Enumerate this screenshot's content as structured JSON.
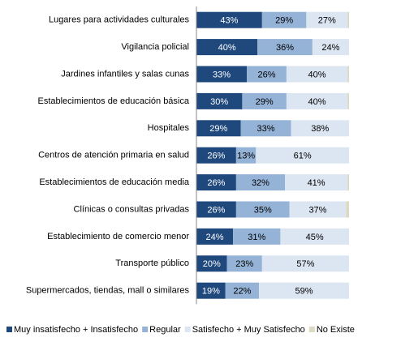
{
  "chart_data": {
    "type": "stacked-bar-horizontal",
    "categories": [
      "Lugares para actividades culturales",
      "Vigilancia policial",
      "Jardines infantiles y salas cunas",
      "Establecimientos de educación básica",
      "Hospitales",
      "Centros de atención primaria en salud",
      "Establecimientos de educación media",
      "Clínicas o consultas privadas",
      "Establecimiento de comercio menor",
      "Transporte público",
      "Supermercados, tiendas, mall o similares"
    ],
    "series": [
      {
        "name": "Muy insatisfecho + Insatisfecho",
        "color": "#1f497d",
        "values": [
          43,
          40,
          33,
          30,
          29,
          26,
          26,
          26,
          24,
          20,
          19
        ],
        "value_labels": [
          "43%",
          "40%",
          "33%",
          "30%",
          "29%",
          "26%",
          "26%",
          "26%",
          "24%",
          "20%",
          "19%"
        ]
      },
      {
        "name": "Regular",
        "color": "#95b3d7",
        "values": [
          29,
          36,
          26,
          29,
          33,
          13,
          32,
          35,
          31,
          23,
          22
        ],
        "value_labels": [
          "29%",
          "36%",
          "26%",
          "29%",
          "33%",
          "13%",
          "32%",
          "35%",
          "31%",
          "23%",
          "22%"
        ]
      },
      {
        "name": "Satisfecho + Muy Satisfecho",
        "color": "#dce6f2",
        "values": [
          27,
          24,
          40,
          40,
          38,
          61,
          41,
          37,
          45,
          57,
          59
        ],
        "value_labels": [
          "27%",
          "24%",
          "40%",
          "40%",
          "38%",
          "61%",
          "41%",
          "37%",
          "45%",
          "57%",
          "59%"
        ]
      },
      {
        "name": "No Existe",
        "color": "#ddd9c3",
        "values": [
          1,
          0,
          1,
          1,
          0,
          0,
          1,
          2,
          0,
          0,
          0
        ]
      }
    ],
    "xlim": [
      0,
      100
    ],
    "legend": "bottom"
  }
}
